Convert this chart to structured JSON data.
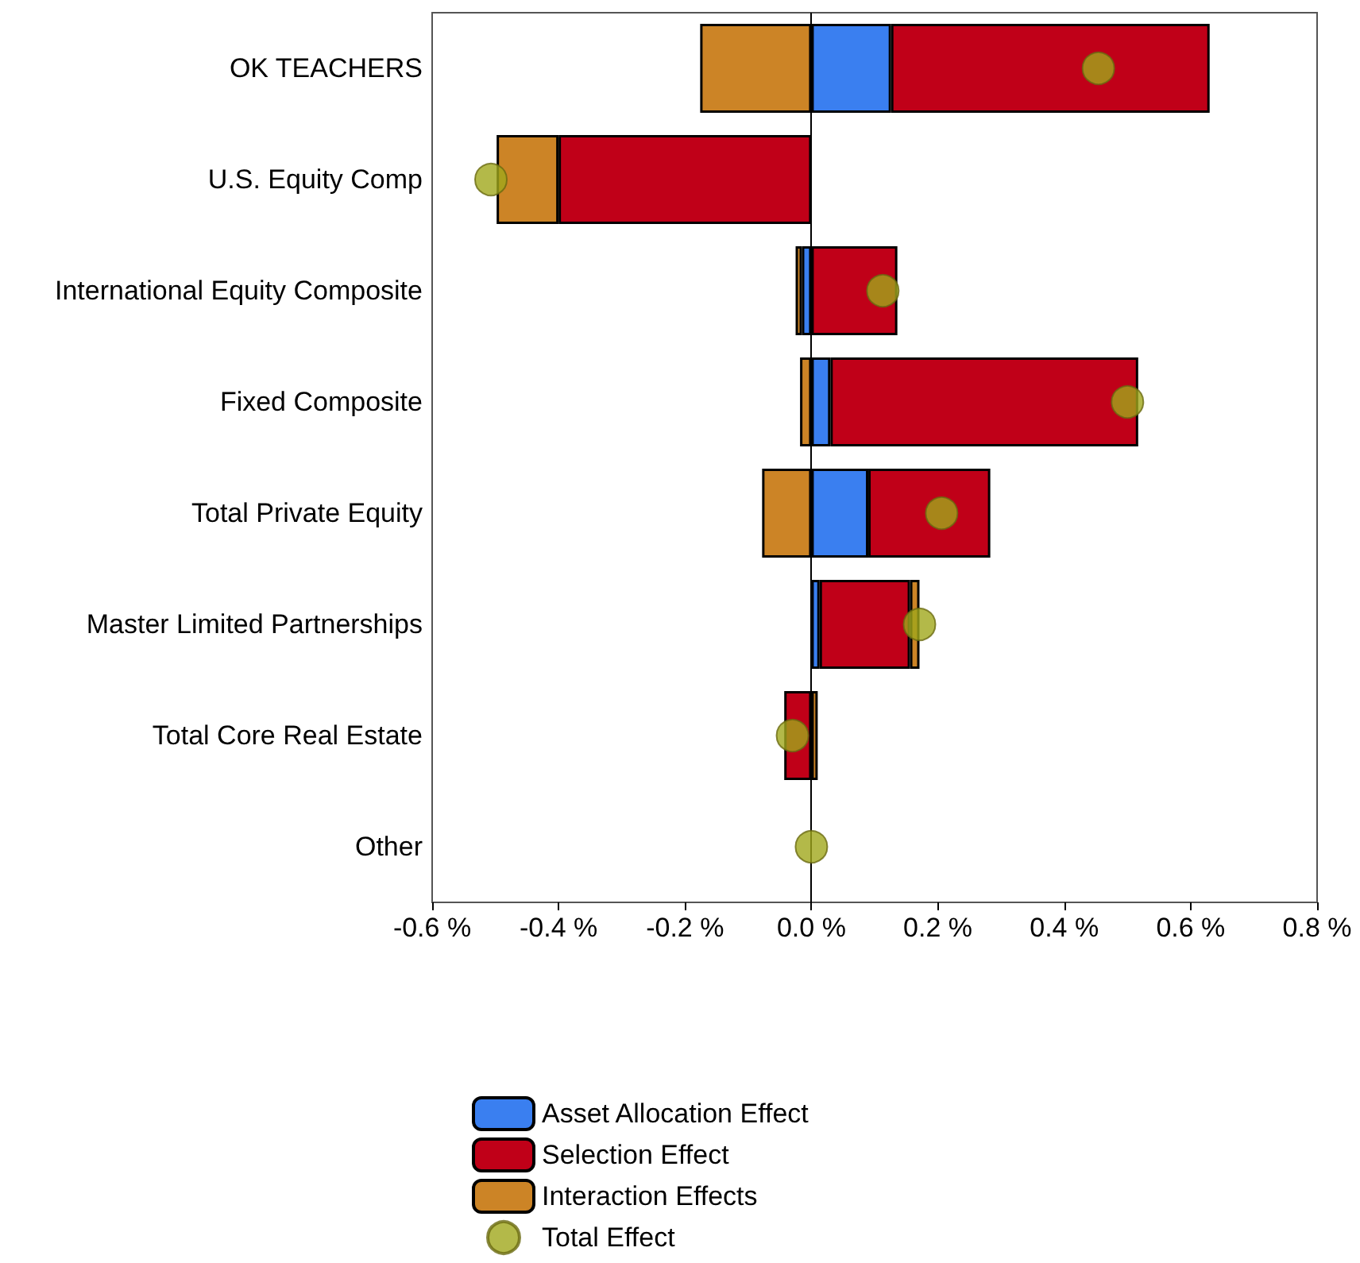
{
  "chart_data": {
    "type": "bar",
    "orientation": "horizontal",
    "stacked": true,
    "categories": [
      "OK TEACHERS",
      "U.S. Equity Comp",
      "International Equity Composite",
      "Fixed Composite",
      "Total Private Equity",
      "Master Limited Partnerships",
      "Total Core Real Estate",
      "Other"
    ],
    "series": [
      {
        "name": "Asset Allocation Effect",
        "color": "#3a7ff0",
        "values": [
          0.126,
          null,
          -0.015,
          0.03,
          0.09,
          0.013,
          null,
          null
        ]
      },
      {
        "name": "Selection Effect",
        "color": "#c00018",
        "values": [
          0.504,
          -0.4,
          0.136,
          0.487,
          0.193,
          0.143,
          -0.043,
          null
        ]
      },
      {
        "name": "Interaction Effects",
        "color": "#cc8426",
        "values": [
          -0.176,
          -0.098,
          -0.01,
          -0.018,
          -0.078,
          0.015,
          0.01,
          null
        ]
      },
      {
        "name": "Total Effect",
        "type": "scatter",
        "color": "#a0a81c",
        "values": [
          0.454,
          -0.507,
          0.113,
          0.5,
          0.206,
          0.171,
          -0.03,
          0
        ]
      }
    ],
    "xlim": [
      -0.6,
      0.8
    ],
    "xticks": [
      {
        "value": -0.6,
        "label": "-0.6 %"
      },
      {
        "value": -0.4,
        "label": "-0.4 %"
      },
      {
        "value": -0.2,
        "label": "-0.2 %"
      },
      {
        "value": 0,
        "label": "0.0 %"
      },
      {
        "value": 0.2,
        "label": "0.2 %"
      },
      {
        "value": 0.4,
        "label": "0.4 %"
      },
      {
        "value": 0.6,
        "label": "0.6 %"
      },
      {
        "value": 0.8,
        "label": "0.8 %"
      }
    ],
    "ref_lines": [
      {
        "axis": "x",
        "value": 0,
        "color": "#000000"
      }
    ],
    "grid": false,
    "legend": "bottom",
    "marker": "circle"
  }
}
